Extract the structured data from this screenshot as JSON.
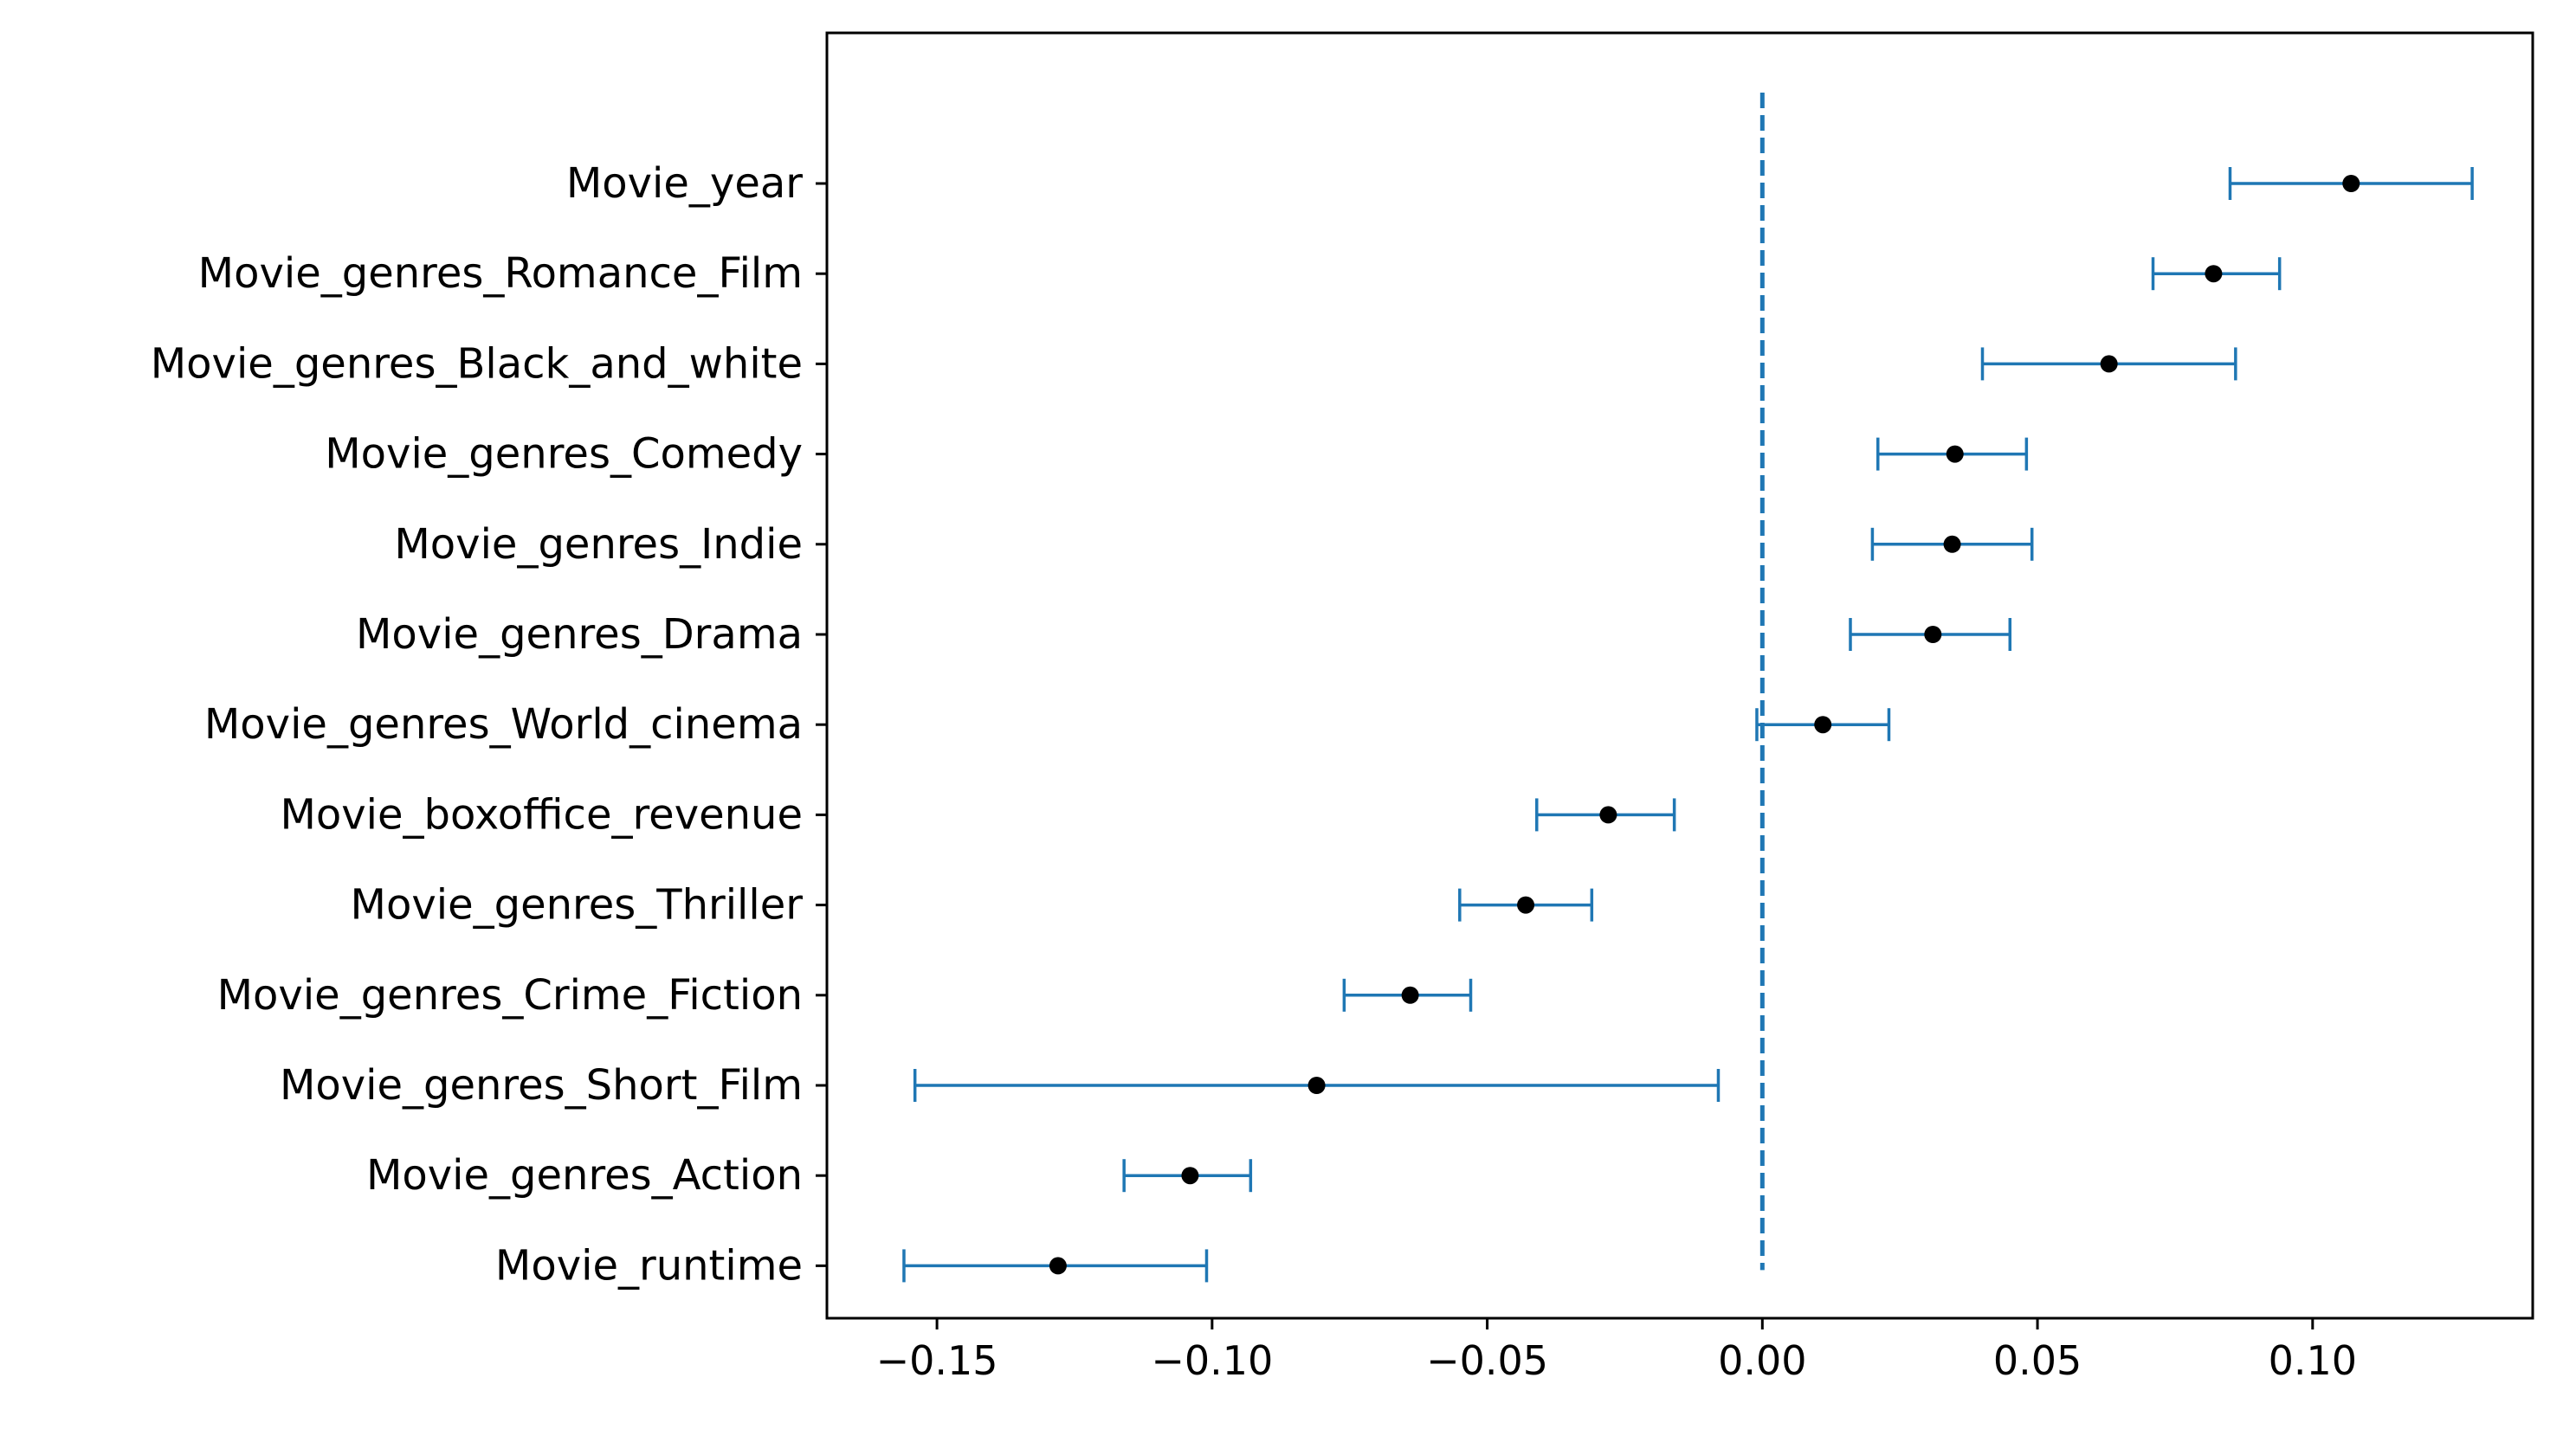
{
  "chart_data": {
    "type": "scatter",
    "variant": "point-with-error-bars",
    "title": "",
    "xlabel": "",
    "ylabel": "",
    "xlim": [
      -0.17,
      0.14
    ],
    "xticks": [
      -0.15,
      -0.1,
      -0.05,
      0.0,
      0.05,
      0.1
    ],
    "xtick_labels": [
      "−0.15",
      "−0.10",
      "−0.05",
      "0.00",
      "0.05",
      "0.10"
    ],
    "grid": false,
    "reference_line": {
      "x": 0.0,
      "style": "dashed",
      "color": "#1f77b4"
    },
    "colors": {
      "point": "#000000",
      "errorbar": "#1f77b4"
    },
    "categories": [
      "Movie_year",
      "Movie_genres_Romance_Film",
      "Movie_genres_Black_and_white",
      "Movie_genres_Comedy",
      "Movie_genres_Indie",
      "Movie_genres_Drama",
      "Movie_genres_World_cinema",
      "Movie_boxoffice_revenue",
      "Movie_genres_Thriller",
      "Movie_genres_Crime_Fiction",
      "Movie_genres_Short_Film",
      "Movie_genres_Action",
      "Movie_runtime"
    ],
    "values": [
      0.107,
      0.082,
      0.063,
      0.035,
      0.0345,
      0.031,
      0.011,
      -0.028,
      -0.043,
      -0.064,
      -0.081,
      -0.104,
      -0.128
    ],
    "lower": [
      0.085,
      0.071,
      0.04,
      0.021,
      0.02,
      0.016,
      -0.001,
      -0.041,
      -0.055,
      -0.076,
      -0.154,
      -0.116,
      -0.156
    ],
    "upper": [
      0.129,
      0.094,
      0.086,
      0.048,
      0.049,
      0.045,
      0.023,
      -0.016,
      -0.031,
      -0.053,
      -0.008,
      -0.093,
      -0.101
    ]
  }
}
